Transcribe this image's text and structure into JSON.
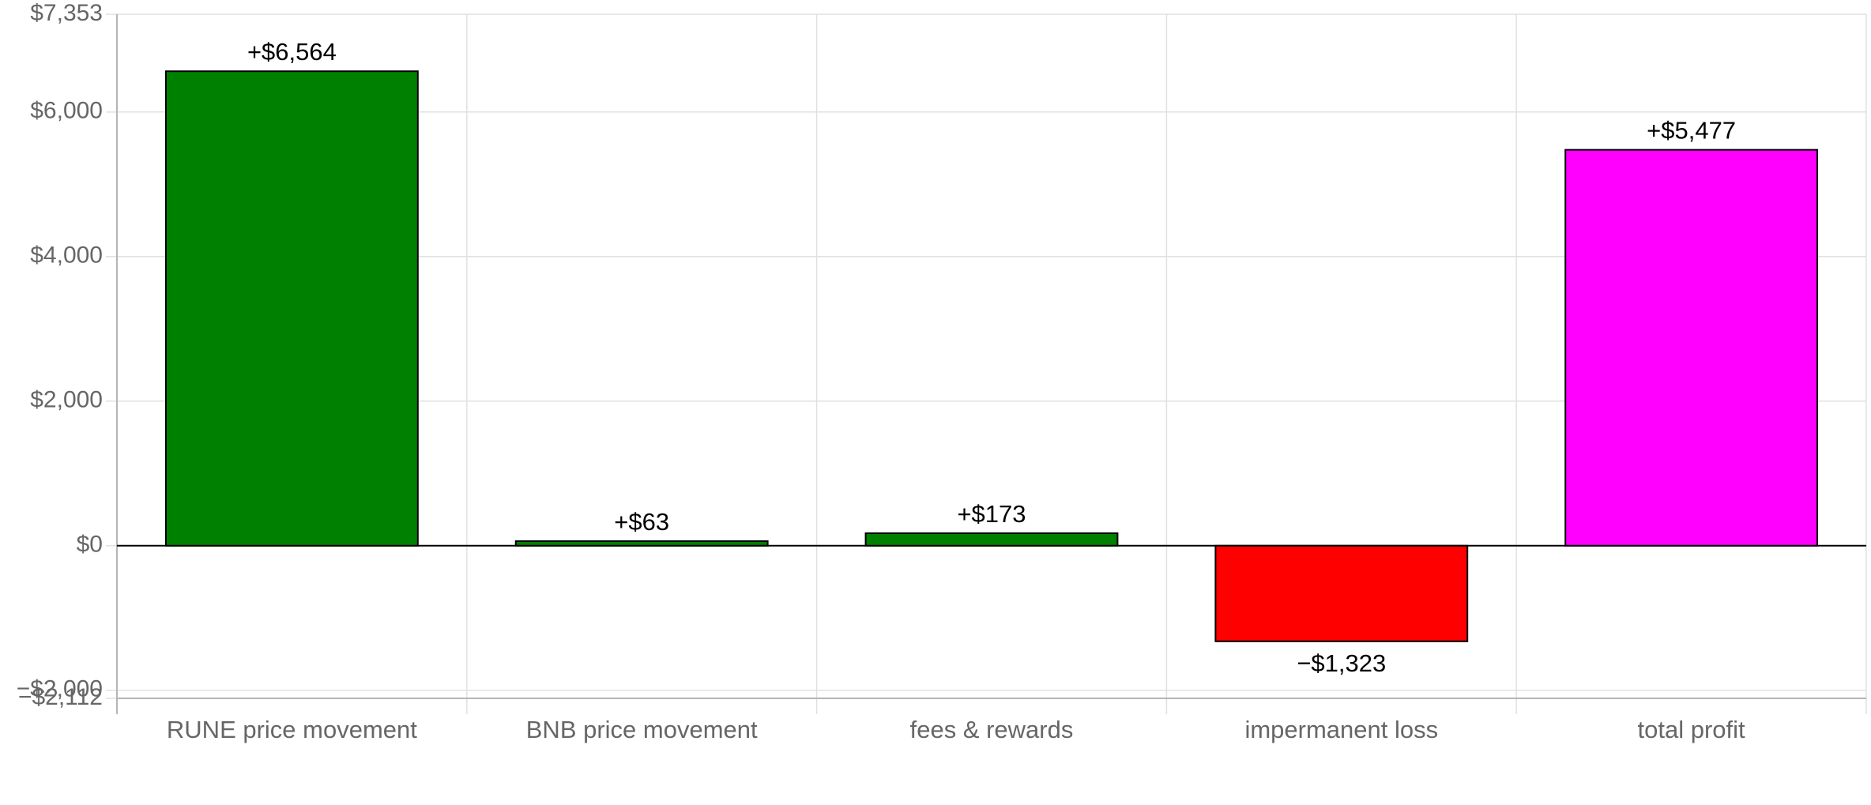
{
  "chart_data": {
    "type": "bar",
    "title": "",
    "xlabel": "",
    "ylabel": "",
    "ylim": [
      -2112,
      7353
    ],
    "yticks": [
      {
        "value": 7353,
        "label": "$7,353"
      },
      {
        "value": 6000,
        "label": "$6,000"
      },
      {
        "value": 4000,
        "label": "$4,000"
      },
      {
        "value": 2000,
        "label": "$2,000"
      },
      {
        "value": 0,
        "label": "$0"
      },
      {
        "value": -2000,
        "label": "−$2,000"
      },
      {
        "value": -2112,
        "label": "−$2,112"
      }
    ],
    "categories": [
      "RUNE price movement",
      "BNB price movement",
      "fees & rewards",
      "impermanent loss",
      "total profit"
    ],
    "values": [
      6564,
      63,
      173,
      -1323,
      5477
    ],
    "data_labels": [
      "+$6,564",
      "+$63",
      "+$173",
      "−$1,323",
      "+$5,477"
    ],
    "colors": [
      "#008000",
      "#008000",
      "#008000",
      "#ff0000",
      "#ff00ff"
    ],
    "grid": true,
    "legend": "none"
  }
}
